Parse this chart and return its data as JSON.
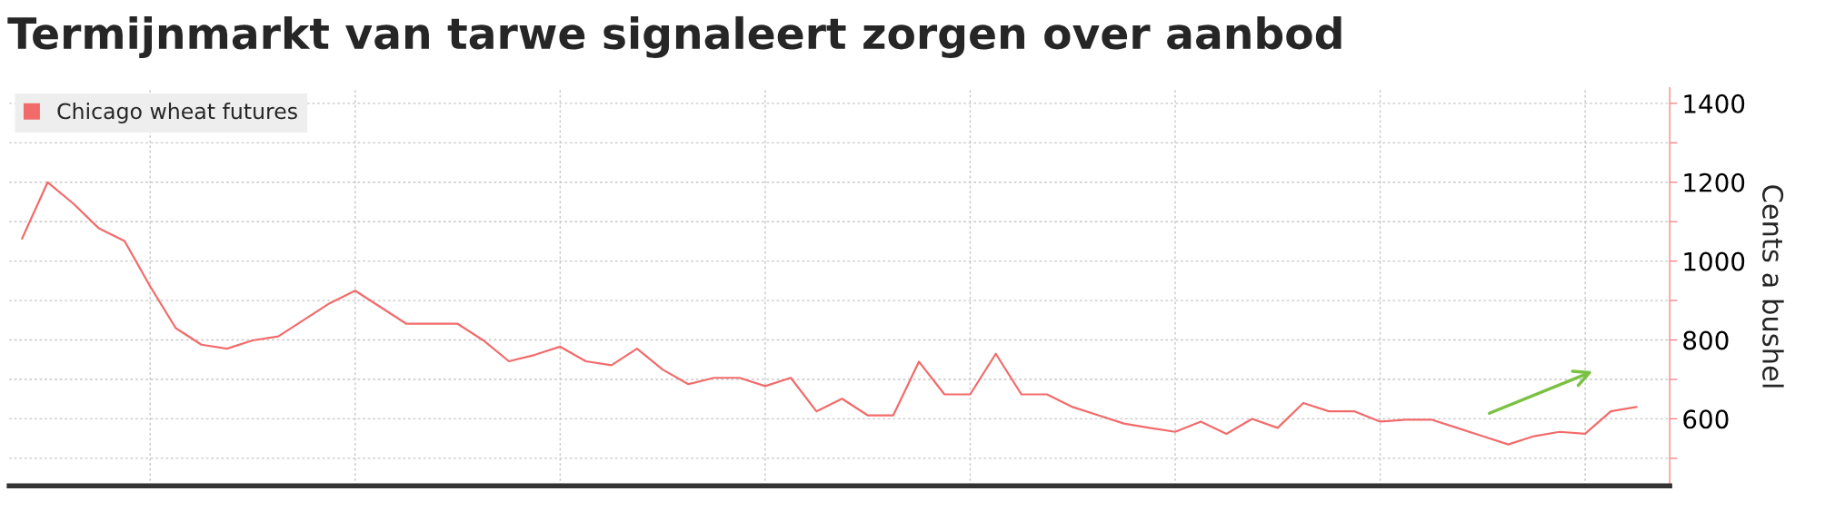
{
  "chart_data": {
    "type": "line",
    "title": "Termijnmarkt van tarwe signaleert zorgen over aanbod",
    "ylabel": "Cents a bushel",
    "categories": [
      null,
      null,
      null,
      null,
      null,
      null,
      null,
      null,
      null,
      null,
      null,
      null,
      null,
      null,
      null,
      null,
      null,
      null,
      null,
      null,
      null,
      null,
      null,
      null,
      null,
      null,
      null,
      null,
      null,
      null,
      null,
      null,
      null,
      null,
      null,
      null,
      null,
      null,
      null,
      null,
      null,
      null,
      null,
      null,
      null,
      null,
      null,
      null,
      null,
      null,
      null,
      null,
      null,
      null,
      null,
      null,
      null,
      null,
      null,
      null,
      null,
      null,
      null,
      null
    ],
    "series": [
      {
        "name": "Chicago wheat futures",
        "color": "#f26b6b",
        "values": [
          1057,
          1200,
          1146,
          1083,
          1051,
          936,
          830,
          788,
          778,
          799,
          809,
          851,
          893,
          925,
          883,
          841,
          841,
          841,
          799,
          746,
          762,
          783,
          746,
          736,
          778,
          725,
          688,
          704,
          704,
          683,
          704,
          619,
          651,
          609,
          609,
          745,
          662,
          662,
          765,
          662,
          662,
          630,
          609,
          588,
          577,
          567,
          593,
          562,
          600,
          577,
          640,
          619,
          619,
          593,
          598,
          598,
          577,
          556,
          535,
          556,
          567,
          562,
          619,
          630
        ]
      }
    ],
    "ylim": [
      430,
      1440
    ],
    "yticks": [
      {
        "value": 500,
        "label": null
      },
      600,
      {
        "value": 700,
        "label": null
      },
      800,
      {
        "value": 900,
        "label": null
      },
      1000,
      {
        "value": 1100,
        "label": null
      },
      1200,
      {
        "value": 1300,
        "label": null
      },
      1400
    ],
    "grid": true,
    "legend": "top left",
    "tick_labels": "y",
    "line_style": "solid",
    "marker": "none"
  }
}
